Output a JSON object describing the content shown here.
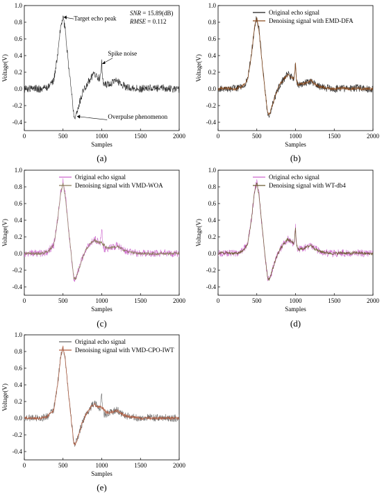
{
  "figure": {
    "panels": [
      {
        "id": "a",
        "caption": "(a)",
        "metrics": {
          "snr_name": "SNR",
          "snr_value": " = 15.89(dB)",
          "rmse_name": "RMSE",
          "rmse_value": " = 0.112"
        },
        "annotations": {
          "peak": "Target echo peak",
          "spike": "Spike noise",
          "overpulse": "Overpulse phenomenon"
        }
      },
      {
        "id": "b",
        "caption": "(b)",
        "legend": [
          "Original echo signal",
          "Denoising signal with EMD-DFA"
        ]
      },
      {
        "id": "c",
        "caption": "(c)",
        "legend": [
          "Original echo signal",
          "Denoising signal with VMD-WOA"
        ]
      },
      {
        "id": "d",
        "caption": "(d)",
        "legend": [
          "Original echo signal",
          "Denoising signal with WT-db4"
        ]
      },
      {
        "id": "e",
        "caption": "(e)",
        "legend": [
          "Original echo signal",
          "Denoising signal with VMD-CPO-IWT"
        ]
      }
    ],
    "colors": {
      "original": "#1a1a1a",
      "original_light": "#cc66cc",
      "emd_dfa": "#8b4a1c",
      "vmd_woa": "#8a7a5a",
      "wt_db4": "#6b5a30",
      "vmd_cpo_iwt": "#b05a3c"
    }
  },
  "chart_data": [
    {
      "type": "line",
      "panel": "a",
      "xlabel": "Samples",
      "ylabel": "Voltage(V)",
      "xlim": [
        0,
        2000
      ],
      "ylim": [
        -0.5,
        1.0
      ],
      "x_ticks": [
        0,
        500,
        1000,
        1500,
        2000
      ],
      "y_ticks": [
        -0.4,
        -0.2,
        0.0,
        0.2,
        0.4,
        0.6,
        0.8,
        1.0
      ],
      "series": [
        {
          "role": "noisy",
          "color": "#1a1a1a",
          "x": [
            0,
            100,
            200,
            300,
            380,
            430,
            470,
            500,
            530,
            570,
            610,
            640,
            660,
            700,
            750,
            800,
            850,
            900,
            950,
            980,
            990,
            1000,
            1010,
            1030,
            1100,
            1150,
            1200,
            1250,
            1300,
            1400,
            1500,
            1600,
            1700,
            1800,
            1900,
            2000
          ],
          "y": [
            0.0,
            0.01,
            0.0,
            0.02,
            0.1,
            0.4,
            0.75,
            0.86,
            0.7,
            0.3,
            -0.05,
            -0.3,
            -0.32,
            -0.2,
            -0.05,
            0.05,
            0.12,
            0.18,
            0.14,
            0.12,
            0.2,
            0.32,
            0.12,
            0.05,
            0.06,
            0.08,
            0.1,
            0.06,
            0.03,
            0.01,
            0.0,
            0.01,
            0.0,
            0.01,
            0.0,
            0.0
          ]
        }
      ]
    },
    {
      "type": "line",
      "panel": "b",
      "xlabel": "Samples",
      "ylabel": "Voltage(V)",
      "xlim": [
        0,
        2000
      ],
      "ylim": [
        -0.5,
        1.0
      ],
      "x_ticks": [
        0,
        500,
        1000,
        1500,
        2000
      ],
      "y_ticks": [
        -0.4,
        -0.2,
        0.0,
        0.2,
        0.4,
        0.6,
        0.8,
        1.0
      ],
      "series": [
        {
          "name": "Original echo signal",
          "color": "#1a1a1a",
          "x": [
            0,
            100,
            200,
            300,
            380,
            430,
            470,
            500,
            530,
            570,
            610,
            640,
            660,
            700,
            750,
            800,
            850,
            900,
            950,
            980,
            990,
            1000,
            1010,
            1030,
            1100,
            1150,
            1200,
            1250,
            1300,
            1400,
            1500,
            1600,
            1700,
            1800,
            1900,
            2000
          ],
          "y": [
            0.0,
            0.01,
            0.0,
            0.02,
            0.1,
            0.4,
            0.75,
            0.86,
            0.7,
            0.3,
            -0.05,
            -0.3,
            -0.32,
            -0.2,
            -0.05,
            0.05,
            0.12,
            0.18,
            0.14,
            0.12,
            0.2,
            0.32,
            0.12,
            0.05,
            0.06,
            0.08,
            0.1,
            0.06,
            0.03,
            0.01,
            0.0,
            0.01,
            0.0,
            0.01,
            0.0,
            0.0
          ]
        },
        {
          "name": "Denoising signal with EMD-DFA",
          "color": "#8b4a1c",
          "x": [
            0,
            100,
            200,
            300,
            380,
            430,
            470,
            500,
            530,
            570,
            610,
            640,
            660,
            700,
            750,
            800,
            850,
            900,
            950,
            980,
            990,
            1000,
            1010,
            1030,
            1100,
            1150,
            1200,
            1250,
            1300,
            1400,
            1500,
            1600,
            1700,
            1800,
            1900,
            2000
          ],
          "y": [
            0.0,
            0.01,
            0.0,
            0.02,
            0.1,
            0.4,
            0.74,
            0.85,
            0.69,
            0.3,
            -0.05,
            -0.29,
            -0.31,
            -0.2,
            -0.05,
            0.05,
            0.12,
            0.17,
            0.14,
            0.12,
            0.19,
            0.3,
            0.12,
            0.05,
            0.06,
            0.08,
            0.1,
            0.06,
            0.03,
            0.01,
            0.0,
            0.01,
            0.0,
            0.01,
            0.0,
            0.0
          ]
        }
      ]
    },
    {
      "type": "line",
      "panel": "c",
      "xlabel": "Samples",
      "ylabel": "Voltage(V)",
      "xlim": [
        0,
        2000
      ],
      "ylim": [
        -0.5,
        1.0
      ],
      "x_ticks": [
        0,
        500,
        1000,
        1500,
        2000
      ],
      "y_ticks": [
        -0.4,
        -0.2,
        0.0,
        0.2,
        0.4,
        0.6,
        0.8,
        1.0
      ],
      "series": [
        {
          "name": "Original echo signal",
          "color": "#cc66cc",
          "x": [
            0,
            100,
            200,
            300,
            380,
            430,
            470,
            500,
            530,
            570,
            610,
            640,
            660,
            700,
            750,
            800,
            850,
            900,
            950,
            980,
            990,
            1000,
            1010,
            1030,
            1100,
            1150,
            1200,
            1250,
            1300,
            1400,
            1500,
            1600,
            1700,
            1800,
            1900,
            2000
          ],
          "y": [
            0.0,
            0.01,
            0.0,
            0.02,
            0.1,
            0.4,
            0.75,
            0.86,
            0.7,
            0.3,
            -0.05,
            -0.3,
            -0.32,
            -0.2,
            -0.05,
            0.05,
            0.12,
            0.18,
            0.14,
            0.12,
            0.2,
            0.32,
            0.12,
            0.05,
            0.06,
            0.08,
            0.1,
            0.06,
            0.03,
            0.01,
            0.0,
            0.01,
            0.0,
            0.01,
            0.0,
            0.0
          ]
        },
        {
          "name": "Denoising signal with VMD-WOA",
          "color": "#8a7a5a",
          "x": [
            0,
            100,
            200,
            300,
            380,
            430,
            470,
            500,
            530,
            570,
            610,
            640,
            660,
            700,
            750,
            800,
            850,
            900,
            950,
            1000,
            1050,
            1100,
            1150,
            1200,
            1250,
            1300,
            1400,
            1500,
            1600,
            1700,
            1800,
            1900,
            2000
          ],
          "y": [
            0.0,
            0.0,
            0.0,
            0.02,
            0.1,
            0.4,
            0.73,
            0.84,
            0.68,
            0.3,
            -0.05,
            -0.29,
            -0.31,
            -0.2,
            -0.05,
            0.05,
            0.12,
            0.16,
            0.14,
            0.13,
            0.08,
            0.06,
            0.08,
            0.09,
            0.06,
            0.03,
            0.01,
            0.0,
            0.0,
            0.0,
            0.0,
            0.0,
            0.0
          ]
        }
      ]
    },
    {
      "type": "line",
      "panel": "d",
      "xlabel": "Samples",
      "ylabel": "Voltage(V)",
      "xlim": [
        0,
        2000
      ],
      "ylim": [
        -0.5,
        1.0
      ],
      "x_ticks": [
        0,
        500,
        1000,
        1500,
        2000
      ],
      "y_ticks": [
        -0.4,
        -0.2,
        0.0,
        0.2,
        0.4,
        0.6,
        0.8,
        1.0
      ],
      "series": [
        {
          "name": "Original echo signal",
          "color": "#cc66cc",
          "x": [
            0,
            100,
            200,
            300,
            380,
            430,
            470,
            500,
            530,
            570,
            610,
            640,
            660,
            700,
            750,
            800,
            850,
            900,
            950,
            980,
            990,
            1000,
            1010,
            1030,
            1100,
            1150,
            1200,
            1250,
            1300,
            1400,
            1500,
            1600,
            1700,
            1800,
            1900,
            2000
          ],
          "y": [
            0.0,
            0.01,
            0.0,
            0.02,
            0.1,
            0.4,
            0.75,
            0.86,
            0.7,
            0.3,
            -0.05,
            -0.3,
            -0.32,
            -0.2,
            -0.05,
            0.05,
            0.12,
            0.18,
            0.14,
            0.12,
            0.2,
            0.32,
            0.12,
            0.05,
            0.06,
            0.08,
            0.1,
            0.06,
            0.03,
            0.01,
            0.0,
            0.01,
            0.0,
            0.01,
            0.0,
            0.0
          ]
        },
        {
          "name": "Denoising signal with WT-db4",
          "color": "#6b5a30",
          "x": [
            0,
            100,
            200,
            300,
            380,
            430,
            470,
            500,
            530,
            570,
            610,
            640,
            660,
            700,
            750,
            800,
            850,
            900,
            950,
            980,
            990,
            1000,
            1010,
            1030,
            1100,
            1150,
            1200,
            1250,
            1300,
            1400,
            1500,
            1600,
            1700,
            1800,
            1900,
            2000
          ],
          "y": [
            0.0,
            0.01,
            0.0,
            0.02,
            0.1,
            0.4,
            0.74,
            0.85,
            0.69,
            0.3,
            -0.05,
            -0.29,
            -0.31,
            -0.2,
            -0.05,
            0.05,
            0.12,
            0.17,
            0.14,
            0.12,
            0.19,
            0.3,
            0.12,
            0.05,
            0.06,
            0.08,
            0.1,
            0.06,
            0.03,
            0.01,
            0.0,
            0.01,
            0.0,
            0.01,
            0.0,
            0.0
          ]
        }
      ]
    },
    {
      "type": "line",
      "panel": "e",
      "xlabel": "Samples",
      "ylabel": "Voltage(V)",
      "xlim": [
        0,
        2000
      ],
      "ylim": [
        -0.5,
        1.0
      ],
      "x_ticks": [
        0,
        500,
        1000,
        1500,
        2000
      ],
      "y_ticks": [
        -0.4,
        -0.2,
        0.0,
        0.2,
        0.4,
        0.6,
        0.8,
        1.0
      ],
      "series": [
        {
          "name": "Original echo signal",
          "color": "#666666",
          "x": [
            0,
            100,
            200,
            300,
            380,
            430,
            470,
            500,
            530,
            570,
            610,
            640,
            660,
            700,
            750,
            800,
            850,
            900,
            950,
            980,
            990,
            1000,
            1010,
            1030,
            1100,
            1150,
            1200,
            1250,
            1300,
            1400,
            1500,
            1600,
            1700,
            1800,
            1900,
            2000
          ],
          "y": [
            0.0,
            0.01,
            0.0,
            0.02,
            0.1,
            0.4,
            0.75,
            0.86,
            0.7,
            0.3,
            -0.05,
            -0.3,
            -0.32,
            -0.2,
            -0.05,
            0.05,
            0.12,
            0.18,
            0.14,
            0.12,
            0.2,
            0.32,
            0.12,
            0.05,
            0.06,
            0.08,
            0.1,
            0.06,
            0.03,
            0.01,
            0.0,
            0.01,
            0.0,
            0.01,
            0.0,
            0.0
          ]
        },
        {
          "name": "Denoising signal with VMD-CPO-IWT",
          "color": "#b05a3c",
          "x": [
            0,
            100,
            200,
            300,
            380,
            430,
            470,
            500,
            530,
            570,
            610,
            640,
            660,
            700,
            750,
            800,
            850,
            900,
            950,
            1000,
            1050,
            1100,
            1150,
            1200,
            1250,
            1300,
            1400,
            1500,
            1600,
            1700,
            1800,
            1900,
            2000
          ],
          "y": [
            0.0,
            0.0,
            0.0,
            0.02,
            0.1,
            0.4,
            0.74,
            0.86,
            0.7,
            0.3,
            -0.05,
            -0.3,
            -0.32,
            -0.2,
            -0.05,
            0.05,
            0.12,
            0.17,
            0.14,
            0.13,
            0.08,
            0.06,
            0.08,
            0.09,
            0.06,
            0.03,
            0.01,
            0.0,
            0.0,
            0.0,
            0.0,
            0.0,
            0.0
          ]
        }
      ]
    }
  ]
}
